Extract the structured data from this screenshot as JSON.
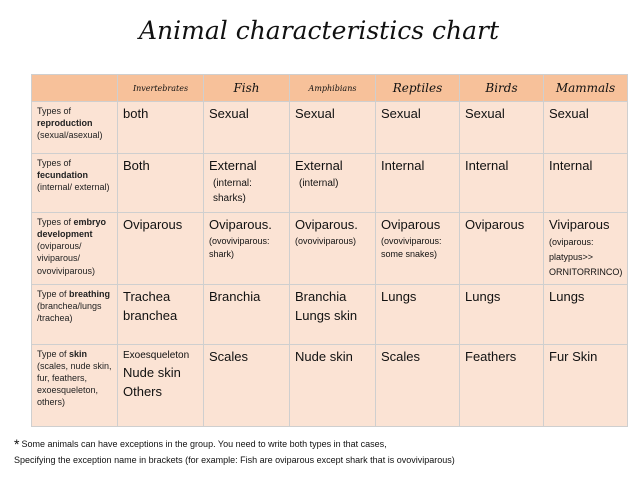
{
  "title": "Animal characteristics chart",
  "header": {
    "blank": "",
    "columns": [
      "Invertebrates",
      "Fish",
      "Amphibians",
      "Reptiles",
      "Birds",
      "Mammals"
    ]
  },
  "rows": [
    {
      "head": {
        "a": "Types of ",
        "b": "reproduction",
        "c": " (sexual/asexual)"
      },
      "cells": [
        {
          "main": "both",
          "sub": ""
        },
        {
          "main": "Sexual",
          "sub": ""
        },
        {
          "main": "Sexual",
          "sub": ""
        },
        {
          "main": "Sexual",
          "sub": ""
        },
        {
          "main": "Sexual",
          "sub": ""
        },
        {
          "main": "Sexual",
          "sub": ""
        }
      ]
    },
    {
      "head": {
        "a": "Types of ",
        "b": "fecundation",
        "c": " (internal/ external)"
      },
      "cells": [
        {
          "main": "Both",
          "sub": ""
        },
        {
          "main": "External",
          "sub": "(internal: sharks)"
        },
        {
          "main": "External",
          "sub": "(internal)"
        },
        {
          "main": "Internal",
          "sub": ""
        },
        {
          "main": "Internal",
          "sub": ""
        },
        {
          "main": "Internal",
          "sub": ""
        }
      ]
    },
    {
      "head": {
        "a": "Types of ",
        "b": "embryo development",
        "c": " (oviparous/ viviparous/ ovoviviparous)"
      },
      "cells": [
        {
          "main": "Oviparous",
          "sub": ""
        },
        {
          "main": "Oviparous.",
          "sub": "(ovoviviparous: shark)"
        },
        {
          "main": "Oviparous.",
          "sub": "(ovoviviparous)"
        },
        {
          "main": "Oviparous",
          "sub": "(ovoviviparous: some snakes)"
        },
        {
          "main": "Oviparous",
          "sub": ""
        },
        {
          "main": "Viviparous",
          "sub": "(oviparous: platypus>> ORNITORRINCO)"
        }
      ]
    },
    {
      "head": {
        "a": "Type of ",
        "b": "breathing",
        "c": " (branchea/lungs /trachea)"
      },
      "cells": [
        {
          "main": "Trachea branchea",
          "sub": ""
        },
        {
          "main": "Branchia",
          "sub": ""
        },
        {
          "main": "Branchia Lungs skin",
          "sub": ""
        },
        {
          "main": "Lungs",
          "sub": ""
        },
        {
          "main": "Lungs",
          "sub": ""
        },
        {
          "main": "Lungs",
          "sub": ""
        }
      ]
    },
    {
      "head": {
        "a": "Type of ",
        "b": "skin",
        "c": " (scales, nude skin, fur, feathers, exoesqueleton, others)"
      },
      "cells": [
        {
          "main": "Nude skin Others",
          "sub": "Exoesqueleton"
        },
        {
          "main": "Scales",
          "sub": ""
        },
        {
          "main": "Nude skin",
          "sub": ""
        },
        {
          "main": "Scales",
          "sub": ""
        },
        {
          "main": "Feathers",
          "sub": ""
        },
        {
          "main": "Fur Skin",
          "sub": ""
        }
      ]
    }
  ],
  "footnote": {
    "star": "*",
    "line1": "Some animals can have exceptions in the group. You need to write both types in that cases,",
    "line2": "Specifying the exception name  in brackets (for example: Fish are oviparous except shark that is ovoviviparous)"
  }
}
